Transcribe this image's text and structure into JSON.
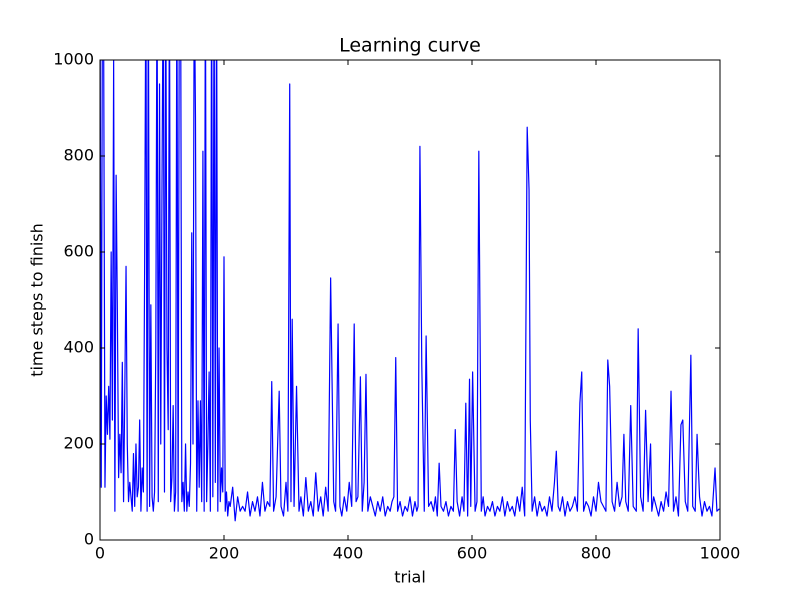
{
  "chart_data": {
    "type": "line",
    "title": "Learning curve",
    "x_label": "trial",
    "y_label": "time steps to finish",
    "x": [
      0,
      2,
      4,
      6,
      8,
      10,
      12,
      14,
      16,
      18,
      20,
      22,
      24,
      26,
      28,
      30,
      32,
      34,
      36,
      38,
      40,
      42,
      44,
      46,
      48,
      50,
      52,
      54,
      56,
      58,
      60,
      62,
      64,
      66,
      68,
      70,
      72,
      74,
      76,
      78,
      80,
      82,
      84,
      86,
      88,
      90,
      92,
      94,
      96,
      98,
      100,
      102,
      104,
      106,
      108,
      110,
      112,
      114,
      116,
      118,
      120,
      122,
      124,
      126,
      128,
      130,
      132,
      134,
      136,
      138,
      140,
      142,
      144,
      146,
      148,
      150,
      152,
      154,
      156,
      158,
      160,
      162,
      164,
      166,
      168,
      170,
      172,
      174,
      176,
      178,
      180,
      182,
      184,
      186,
      188,
      190,
      192,
      194,
      196,
      198,
      200,
      202,
      204,
      206,
      208,
      210,
      214,
      218,
      222,
      226,
      230,
      234,
      238,
      242,
      246,
      250,
      254,
      258,
      262,
      266,
      270,
      274,
      277,
      280,
      284,
      289,
      292,
      296,
      300,
      303,
      306,
      308,
      310,
      313,
      317,
      321,
      324,
      328,
      332,
      336,
      340,
      344,
      348,
      352,
      356,
      360,
      364,
      368,
      372,
      377,
      380,
      384,
      387,
      390,
      394,
      398,
      402,
      406,
      410,
      413,
      416,
      420,
      423,
      426,
      429,
      432,
      436,
      440,
      444,
      448,
      452,
      456,
      460,
      464,
      468,
      471,
      474,
      477,
      480,
      484,
      488,
      492,
      496,
      500,
      504,
      508,
      511,
      513,
      516,
      519,
      523,
      526,
      530,
      534,
      538,
      541,
      544,
      547,
      550,
      554,
      558,
      562,
      566,
      570,
      573,
      576,
      580,
      584,
      587,
      590,
      593,
      596,
      598,
      601,
      605,
      608,
      611,
      615,
      618,
      621,
      625,
      629,
      633,
      637,
      641,
      645,
      649,
      653,
      657,
      661,
      665,
      669,
      673,
      677,
      681,
      685,
      689,
      692,
      694,
      697,
      701,
      705,
      709,
      713,
      717,
      721,
      725,
      729,
      733,
      736,
      739,
      742,
      746,
      750,
      754,
      758,
      762,
      766,
      770,
      774,
      777,
      780,
      784,
      788,
      792,
      796,
      800,
      804,
      808,
      812,
      816,
      819,
      822,
      826,
      830,
      834,
      838,
      842,
      845,
      848,
      852,
      856,
      860,
      865,
      868,
      872,
      876,
      880,
      884,
      888,
      890,
      893,
      897,
      901,
      905,
      909,
      913,
      917,
      921,
      925,
      929,
      933,
      937,
      940,
      944,
      948,
      953,
      956,
      960,
      963,
      967,
      971,
      975,
      979,
      983,
      987,
      992,
      995,
      999
    ],
    "values": [
      1200,
      110,
      1200,
      1000,
      110,
      300,
      220,
      320,
      210,
      600,
      250,
      1000,
      60,
      760,
      480,
      130,
      220,
      140,
      370,
      80,
      310,
      570,
      200,
      80,
      120,
      90,
      60,
      180,
      70,
      200,
      90,
      110,
      250,
      60,
      150,
      100,
      570,
      1200,
      60,
      1200,
      70,
      490,
      90,
      60,
      100,
      400,
      1200,
      80,
      950,
      200,
      740,
      1200,
      100,
      1200,
      400,
      230,
      1200,
      80,
      130,
      280,
      60,
      100,
      1200,
      60,
      1200,
      1200,
      80,
      120,
      60,
      200,
      60,
      100,
      70,
      160,
      640,
      200,
      1200,
      880,
      60,
      290,
      110,
      290,
      80,
      810,
      60,
      1200,
      80,
      200,
      350,
      60,
      1200,
      90,
      1200,
      120,
      1200,
      60,
      400,
      80,
      150,
      100,
      590,
      60,
      100,
      50,
      80,
      70,
      110,
      40,
      90,
      60,
      70,
      60,
      100,
      50,
      80,
      60,
      90,
      50,
      120,
      60,
      80,
      70,
      330,
      60,
      90,
      310,
      70,
      50,
      120,
      60,
      950,
      80,
      460,
      70,
      320,
      60,
      90,
      50,
      130,
      60,
      80,
      50,
      140,
      60,
      90,
      50,
      110,
      60,
      546,
      80,
      60,
      450,
      70,
      50,
      90,
      60,
      120,
      70,
      450,
      80,
      90,
      340,
      60,
      120,
      345,
      60,
      90,
      70,
      50,
      80,
      60,
      90,
      50,
      70,
      60,
      80,
      90,
      380,
      60,
      80,
      50,
      70,
      60,
      90,
      50,
      80,
      60,
      70,
      820,
      365,
      60,
      425,
      70,
      80,
      60,
      90,
      50,
      160,
      70,
      60,
      80,
      50,
      70,
      60,
      230,
      80,
      50,
      90,
      60,
      285,
      50,
      335,
      70,
      350,
      60,
      80,
      810,
      60,
      90,
      50,
      70,
      60,
      80,
      50,
      70,
      60,
      90,
      50,
      80,
      60,
      70,
      50,
      90,
      60,
      110,
      50,
      860,
      730,
      250,
      60,
      90,
      50,
      80,
      60,
      70,
      50,
      90,
      60,
      120,
      185,
      70,
      60,
      90,
      50,
      80,
      60,
      70,
      90,
      60,
      285,
      350,
      60,
      80,
      70,
      50,
      90,
      60,
      120,
      80,
      70,
      60,
      375,
      320,
      80,
      60,
      120,
      70,
      90,
      220,
      80,
      60,
      280,
      70,
      60,
      440,
      90,
      60,
      270,
      80,
      200,
      60,
      90,
      70,
      50,
      80,
      60,
      100,
      70,
      310,
      60,
      90,
      50,
      240,
      250,
      80,
      60,
      385,
      70,
      60,
      220,
      90,
      50,
      80,
      60,
      70,
      50,
      150,
      60,
      65
    ],
    "color": "#0000ff",
    "xlim": [
      0,
      1000
    ],
    "xticks": [
      0,
      200,
      400,
      600,
      800,
      1000
    ],
    "ylim": [
      0,
      1000
    ],
    "yticks": [
      0,
      200,
      400,
      600,
      800,
      1000
    ],
    "grid": false
  }
}
